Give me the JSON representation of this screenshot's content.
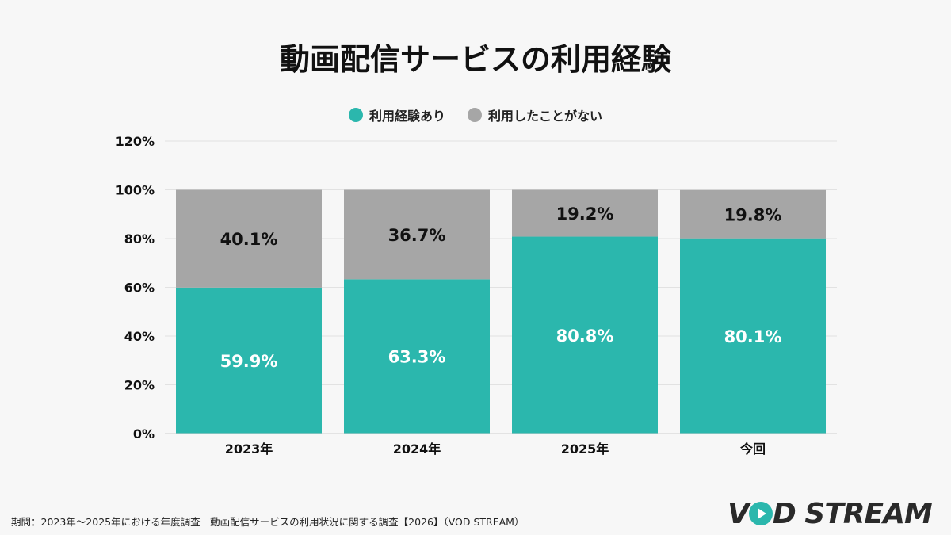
{
  "title": "動画配信サービスの利用経験",
  "footer": "期間：2023年〜2025年における年度調査　動画配信サービスの利用状況に関する調査【2026】（VOD STREAM）",
  "logo": "VOD STREAM",
  "chart_data": {
    "type": "bar",
    "stacked": true,
    "categories": [
      "2023年",
      "2024年",
      "2025年",
      "今回"
    ],
    "series": [
      {
        "name": "利用経験あり",
        "color": "#2bb7ad",
        "values": [
          59.9,
          63.3,
          80.8,
          80.1
        ],
        "labels": [
          "59.9%",
          "63.3%",
          "80.8%",
          "80.1%"
        ]
      },
      {
        "name": "利用したことがない",
        "color": "#a6a6a6",
        "values": [
          40.1,
          36.7,
          19.2,
          19.8
        ],
        "labels": [
          "40.1%",
          "36.7%",
          "19.2%",
          "19.8%"
        ]
      }
    ],
    "ylim": [
      0,
      120
    ],
    "yticks": [
      "0%",
      "20%",
      "40%",
      "60%",
      "80%",
      "100%",
      "120%"
    ],
    "grid": true,
    "legend": "top"
  }
}
